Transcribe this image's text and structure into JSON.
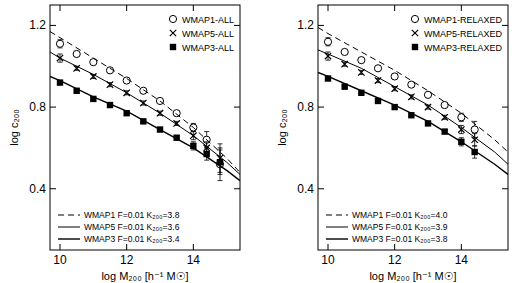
{
  "chart_data": [
    {
      "type": "scatter",
      "x_label": "log M₂₀₀ [h⁻¹ M☉]",
      "y_label": "log c₂₀₀",
      "xlim": [
        9.7,
        15.4
      ],
      "xticks": [
        10,
        12,
        14
      ],
      "ylim": [
        0.1,
        1.3
      ],
      "yticks": [
        0.4,
        0.8,
        1.2
      ],
      "grid": false,
      "series": [
        {
          "name": "WMAP1-ALL",
          "type": "scatter",
          "marker": "open-circle",
          "color": "#000000",
          "legend": "top-right",
          "x": [
            10,
            10.5,
            11,
            11.5,
            12,
            12.5,
            13,
            13.5,
            14,
            14.4,
            14.8
          ],
          "values": [
            1.11,
            1.06,
            1.02,
            0.98,
            0.93,
            0.88,
            0.83,
            0.77,
            0.7,
            0.64,
            0.52
          ],
          "errors": [
            0.02,
            0.01,
            0.01,
            0.01,
            0.01,
            0.01,
            0.01,
            0.01,
            0.02,
            0.04,
            0.08
          ]
        },
        {
          "name": "WMAP5-ALL",
          "type": "scatter",
          "marker": "cross",
          "color": "#000000",
          "legend": "top-right",
          "x": [
            10,
            10.5,
            11,
            11.5,
            12,
            12.5,
            13,
            13.5,
            14,
            14.4,
            14.8
          ],
          "values": [
            1.04,
            0.99,
            0.95,
            0.91,
            0.87,
            0.82,
            0.77,
            0.72,
            0.66,
            0.6,
            0.55
          ],
          "errors": [
            0.02,
            0.01,
            0.01,
            0.01,
            0.01,
            0.01,
            0.01,
            0.01,
            0.02,
            0.03,
            0.07
          ]
        },
        {
          "name": "WMAP3-ALL",
          "type": "scatter",
          "marker": "filled-square",
          "color": "#000000",
          "legend": "top-right",
          "x": [
            10,
            10.5,
            11,
            11.5,
            12,
            12.5,
            13,
            13.5,
            14,
            14.4,
            14.8
          ],
          "values": [
            0.92,
            0.88,
            0.84,
            0.81,
            0.77,
            0.73,
            0.69,
            0.65,
            0.61,
            0.57,
            0.53
          ],
          "errors": [
            0.01,
            0.01,
            0.01,
            0.01,
            0.01,
            0.01,
            0.01,
            0.01,
            0.02,
            0.03,
            0.06
          ]
        },
        {
          "name": "WMAP1  F=0.01  K₂₀₀=3.8",
          "type": "line",
          "line_style": "dashed",
          "color": "#000000",
          "legend": "bottom-left",
          "x": [
            9.7,
            10,
            11,
            12,
            13,
            14,
            15,
            15.4
          ],
          "values": [
            1.17,
            1.14,
            1.04,
            0.94,
            0.83,
            0.7,
            0.55,
            0.48
          ]
        },
        {
          "name": "WMAP5  F=0.01  K₂₀₀=3.6",
          "type": "line",
          "line_style": "solid",
          "color": "#000000",
          "legend": "bottom-left",
          "x": [
            9.7,
            10,
            11,
            12,
            13,
            14,
            15,
            15.4
          ],
          "values": [
            1.07,
            1.04,
            0.96,
            0.87,
            0.77,
            0.66,
            0.53,
            0.47
          ]
        },
        {
          "name": "WMAP3  F=0.01  K₂₀₀=3.4",
          "type": "line",
          "line_style": "solid",
          "color": "#000000",
          "legend": "bottom-left",
          "x": [
            9.7,
            10,
            11,
            12,
            13,
            14,
            15,
            15.4
          ],
          "values": [
            0.95,
            0.93,
            0.85,
            0.78,
            0.69,
            0.6,
            0.49,
            0.44
          ]
        }
      ]
    },
    {
      "type": "scatter",
      "x_label": "log M₂₀₀ [h⁻¹ M☉]",
      "y_label": "log c₂₀₀",
      "xlim": [
        9.7,
        15.4
      ],
      "xticks": [
        10,
        12,
        14
      ],
      "ylim": [
        0.1,
        1.3
      ],
      "yticks": [
        0.4,
        0.8,
        1.2
      ],
      "grid": false,
      "series": [
        {
          "name": "WMAP1-RELAXED",
          "type": "scatter",
          "marker": "open-circle",
          "color": "#000000",
          "legend": "top-right",
          "x": [
            10,
            10.5,
            11,
            11.5,
            12,
            12.5,
            13,
            13.5,
            14,
            14.4
          ],
          "values": [
            1.12,
            1.07,
            1.03,
            0.99,
            0.95,
            0.91,
            0.86,
            0.81,
            0.75,
            0.69
          ],
          "errors": [
            0.02,
            0.01,
            0.01,
            0.01,
            0.01,
            0.01,
            0.01,
            0.01,
            0.02,
            0.04
          ]
        },
        {
          "name": "WMAP5-RELAXED",
          "type": "scatter",
          "marker": "cross",
          "color": "#000000",
          "legend": "top-right",
          "x": [
            10,
            10.5,
            11,
            11.5,
            12,
            12.5,
            13,
            13.5,
            14,
            14.4
          ],
          "values": [
            1.05,
            1.01,
            0.97,
            0.93,
            0.89,
            0.85,
            0.8,
            0.75,
            0.69,
            0.64
          ],
          "errors": [
            0.02,
            0.01,
            0.01,
            0.01,
            0.01,
            0.01,
            0.01,
            0.01,
            0.02,
            0.03
          ]
        },
        {
          "name": "WMAP3-RELAXED",
          "type": "scatter",
          "marker": "filled-square",
          "color": "#000000",
          "legend": "top-right",
          "x": [
            10,
            10.5,
            11,
            11.5,
            12,
            12.5,
            13,
            13.5,
            14,
            14.4
          ],
          "values": [
            0.94,
            0.9,
            0.87,
            0.83,
            0.8,
            0.76,
            0.72,
            0.68,
            0.63,
            0.58
          ],
          "errors": [
            0.01,
            0.01,
            0.01,
            0.01,
            0.01,
            0.01,
            0.01,
            0.01,
            0.02,
            0.03
          ]
        },
        {
          "name": "WMAP1  F=0.01  K₂₀₀=4.0",
          "type": "line",
          "line_style": "dashed",
          "color": "#000000",
          "legend": "bottom-left",
          "x": [
            9.7,
            10,
            11,
            12,
            13,
            14,
            15,
            15.4
          ],
          "values": [
            1.19,
            1.16,
            1.07,
            0.98,
            0.88,
            0.77,
            0.64,
            0.58
          ]
        },
        {
          "name": "WMAP5  F=0.01  K₂₀₀=3.9",
          "type": "line",
          "line_style": "solid",
          "color": "#000000",
          "legend": "bottom-left",
          "x": [
            9.7,
            10,
            11,
            12,
            13,
            14,
            15,
            15.4
          ],
          "values": [
            1.08,
            1.06,
            0.99,
            0.9,
            0.81,
            0.7,
            0.58,
            0.52
          ]
        },
        {
          "name": "WMAP3  F=0.01  K₂₀₀=3.8",
          "type": "line",
          "line_style": "solid",
          "color": "#000000",
          "legend": "bottom-left",
          "x": [
            9.7,
            10,
            11,
            12,
            13,
            14,
            15,
            15.4
          ],
          "values": [
            0.97,
            0.95,
            0.88,
            0.81,
            0.73,
            0.63,
            0.52,
            0.47
          ]
        }
      ]
    }
  ]
}
